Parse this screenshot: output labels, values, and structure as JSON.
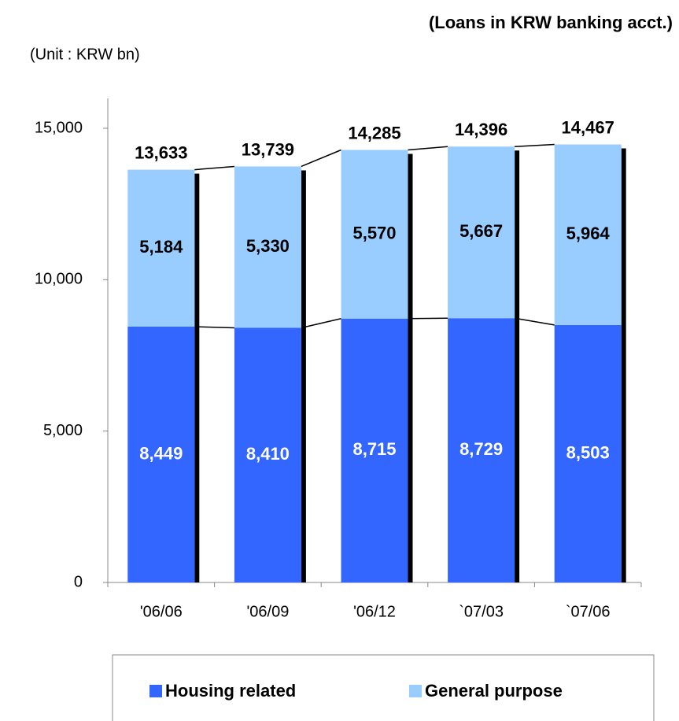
{
  "chart_data": {
    "type": "stacked-bar",
    "title": "(Loans in KRW banking acct.)",
    "subtitle": "(Unit : KRW bn)",
    "categories": [
      "'06/06",
      "'06/09",
      "'06/12",
      "`07/03",
      "`07/06"
    ],
    "series": [
      {
        "name": "Housing related",
        "color": "#3366ff",
        "values": [
          8449,
          8410,
          8715,
          8729,
          8503
        ],
        "value_labels": [
          "8,449",
          "8,410",
          "8,715",
          "8,729",
          "8,503"
        ]
      },
      {
        "name": "General purpose",
        "color": "#99ccff",
        "values": [
          5184,
          5330,
          5570,
          5667,
          5964
        ],
        "value_labels": [
          "5,184",
          "5,330",
          "5,570",
          "5,667",
          "5,964"
        ]
      }
    ],
    "totals": [
      "13,633",
      "13,739",
      "14,285",
      "14,396",
      "14,467"
    ],
    "ylim": [
      0,
      15000
    ],
    "yticks": [
      0,
      {
        "value": 5000,
        "label": "5,000"
      },
      {
        "value": 10000,
        "label": "10,000"
      },
      {
        "value": 15000,
        "label": "15,000"
      }
    ],
    "legend": "bottom"
  }
}
